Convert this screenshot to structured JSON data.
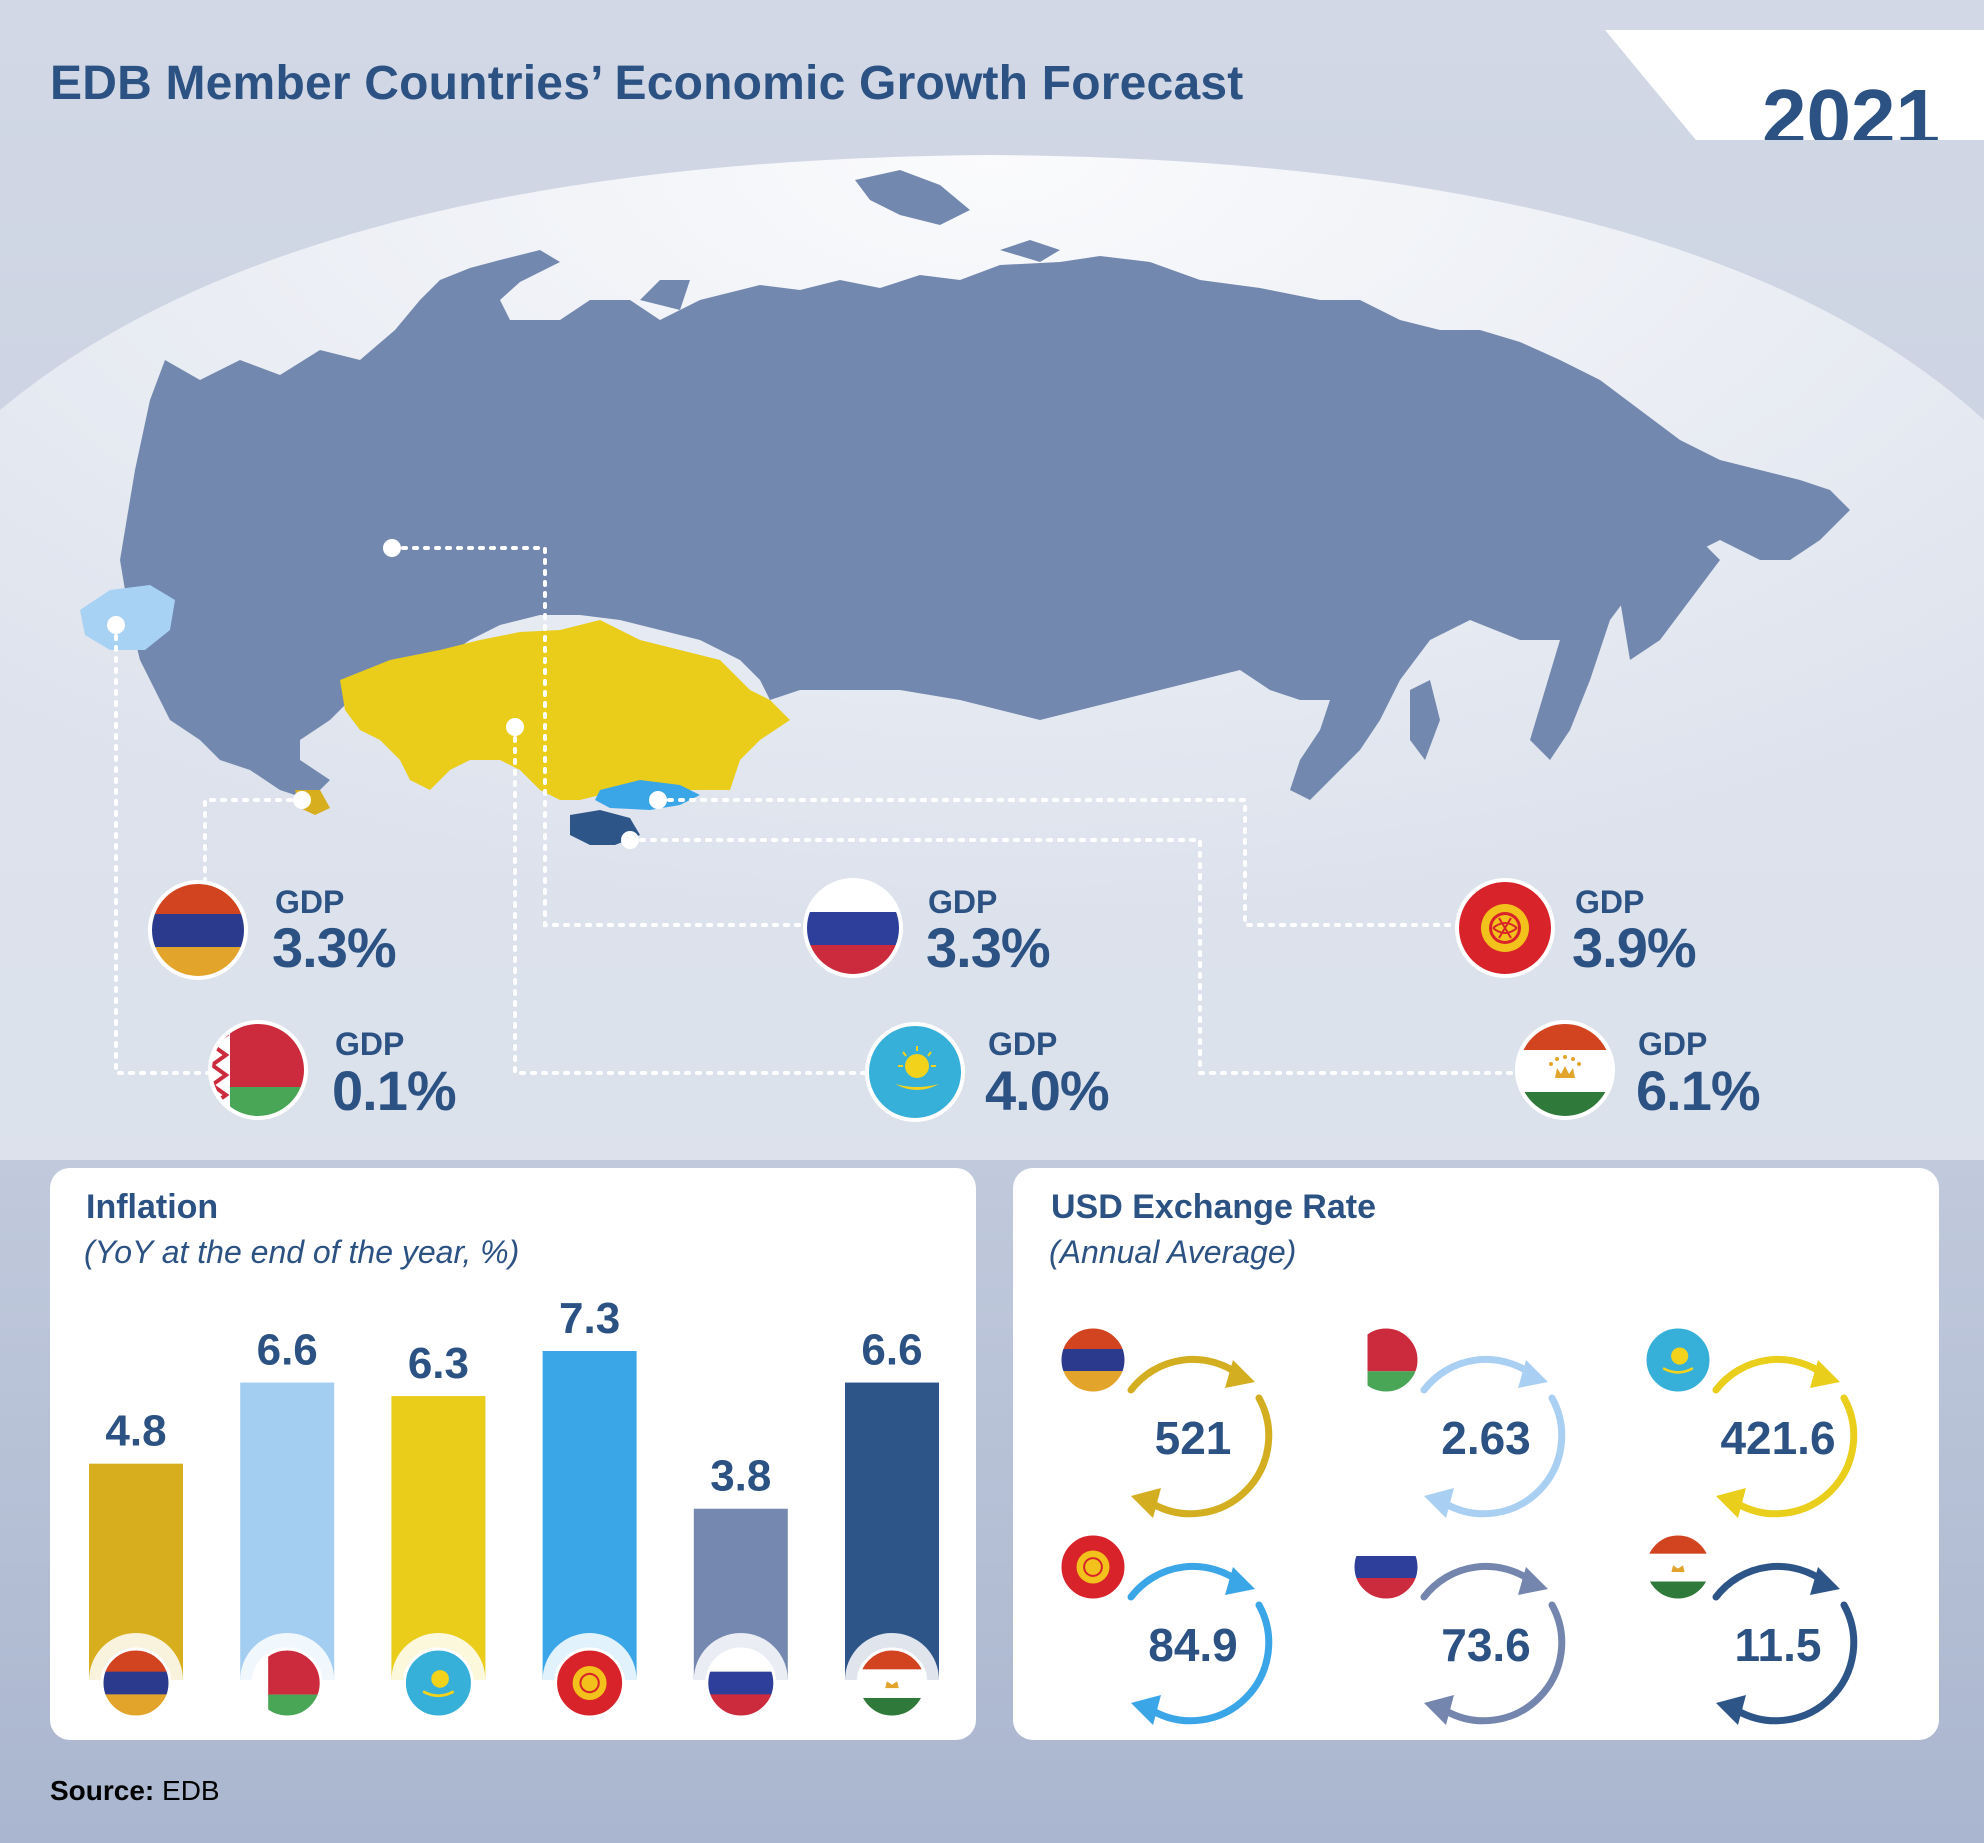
{
  "header": {
    "title": "EDB Member Countries’ Economic Growth Forecast",
    "year": "2021"
  },
  "gdp": [
    {
      "flag": "flag-armenia",
      "label": "GDP",
      "value": "3.3%"
    },
    {
      "flag": "flag-belarus",
      "label": "GDP",
      "value": "0.1%"
    },
    {
      "flag": "flag-russia",
      "label": "GDP",
      "value": "3.3%"
    },
    {
      "flag": "flag-kazakhstan",
      "label": "GDP",
      "value": "4.0%"
    },
    {
      "flag": "flag-kyrgyzstan",
      "label": "GDP",
      "value": "3.9%"
    },
    {
      "flag": "flag-tajikistan",
      "label": "GDP",
      "value": "6.1%"
    }
  ],
  "inflation": {
    "title": "Inflation",
    "subtitle": "(YoY at the end of the year, %)"
  },
  "exchange": {
    "title": "USD Exchange Rate",
    "subtitle": "(Annual Average)",
    "rates": [
      {
        "flag": "flag-armenia",
        "value": "521",
        "color": "#d2ae20"
      },
      {
        "flag": "flag-belarus",
        "value": "2.63",
        "color": "#a9d0f2"
      },
      {
        "flag": "flag-kazakhstan",
        "value": "421.6",
        "color": "#e9cf1b"
      },
      {
        "flag": "flag-kyrgyzstan",
        "value": "84.9",
        "color": "#3aa6e8"
      },
      {
        "flag": "flag-russia",
        "value": "73.6",
        "color": "#7486ae"
      },
      {
        "flag": "flag-tajikistan",
        "value": "11.5",
        "color": "#2e5588"
      }
    ]
  },
  "source": {
    "label": "Source:",
    "value": "EDB"
  },
  "chart_data": {
    "type": "bar",
    "title": "Inflation",
    "subtitle": "(YoY at the end of the year, %)",
    "categories": [
      "flag-armenia",
      "flag-belarus",
      "flag-kazakhstan",
      "flag-kyrgyzstan",
      "flag-russia",
      "flag-tajikistan"
    ],
    "values": [
      4.8,
      6.6,
      6.3,
      7.3,
      3.8,
      6.6
    ],
    "labels": [
      "4.8",
      "6.6",
      "6.3",
      "7.3",
      "3.8",
      "6.6"
    ],
    "colors": [
      "#d6ae1e",
      "#a4cdf2",
      "#e9cd1a",
      "#3aa6e8",
      "#7488b0",
      "#2e5588"
    ],
    "ylim": [
      0,
      7.3
    ],
    "grid": false,
    "legend": "none"
  }
}
